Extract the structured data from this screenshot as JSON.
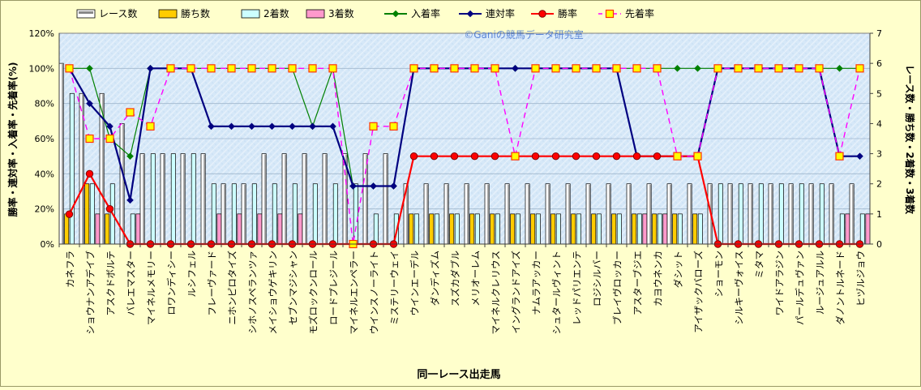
{
  "chart_data": {
    "type": "bar",
    "watermark": "©Ganiの競馬データ研究室",
    "xlabel": "同一レース出走馬",
    "ylabel_left": "勝率・連対率・入着率・先着率(%)",
    "ylabel_right": "レース数・勝ち数・2着数・3着数",
    "ylim_left": [
      0,
      120
    ],
    "ylim_right": [
      0,
      7
    ],
    "yticks_left": [
      "0%",
      "20%",
      "40%",
      "60%",
      "80%",
      "100%",
      "120%"
    ],
    "yticks_right": [
      "0",
      "1",
      "2",
      "3",
      "4",
      "5",
      "6",
      "7"
    ],
    "legend_position": "top",
    "categories": [
      "カネフラ",
      "ショウナンアデイブ",
      "アスクドボルテ",
      "バレエマスター",
      "マイネルメモリー",
      "ロワンディシー",
      "ルシフェル",
      "フレーヴァード",
      "ニホンピロタイズ",
      "シホノスペランツァ",
      "メイショウゲキリン",
      "セブンマジシャン",
      "モズロックンロール",
      "ロードプレジール",
      "マイネルエンペラー",
      "ウインスノーライト",
      "ミステリーウェイ",
      "ウインエーデル",
      "ダンディズム",
      "スズカダブル",
      "メリオーレム",
      "マイネルクレリウス",
      "イングランドアイズ",
      "ナムラアッカー",
      "シュタールヴィント",
      "レッドパリエンテ",
      "ロジシルバー",
      "ブレイヴロッカー",
      "アスターブジエ",
      "カヨウネンカ",
      "ダシット",
      "アイザックバローズ",
      "ショーモン",
      "シルキーヴォイス",
      "ミタマ",
      "ワイドアラジン",
      "パールデュヴァン",
      "ルージュアルル",
      "ダノントルネード",
      "ヒヅルジョウ"
    ],
    "series": [
      {
        "name": "レース数",
        "kind": "bar",
        "axis": "right",
        "color": "#ffffff",
        "values": [
          6,
          5,
          5,
          4,
          3,
          3,
          3,
          3,
          2,
          2,
          3,
          3,
          3,
          3,
          3,
          3,
          3,
          2,
          2,
          2,
          2,
          2,
          2,
          2,
          2,
          2,
          2,
          2,
          2,
          2,
          2,
          2,
          2,
          2,
          2,
          2,
          2,
          2,
          2,
          2
        ]
      },
      {
        "name": "勝ち数",
        "kind": "bar",
        "axis": "right",
        "color": "#ffcc00",
        "values": [
          1,
          2,
          1,
          0,
          0,
          0,
          0,
          0,
          0,
          0,
          0,
          0,
          0,
          0,
          0,
          0,
          0,
          1,
          1,
          1,
          1,
          1,
          1,
          1,
          1,
          1,
          1,
          1,
          1,
          1,
          1,
          1,
          0,
          0,
          0,
          0,
          0,
          0,
          0,
          0
        ]
      },
      {
        "name": "2着数",
        "kind": "bar",
        "axis": "right",
        "color": "#ccffff",
        "values": [
          5,
          2,
          2,
          1,
          3,
          3,
          3,
          2,
          2,
          2,
          2,
          2,
          2,
          2,
          2,
          1,
          1,
          1,
          1,
          1,
          1,
          1,
          1,
          1,
          1,
          1,
          1,
          1,
          1,
          1,
          1,
          1,
          2,
          2,
          2,
          2,
          2,
          2,
          1,
          1
        ]
      },
      {
        "name": "3着数",
        "kind": "bar",
        "axis": "right",
        "color": "#ff99cc",
        "values": [
          0,
          1,
          0,
          1,
          0,
          0,
          0,
          1,
          1,
          1,
          1,
          1,
          0,
          0,
          0,
          0,
          0,
          0,
          0,
          0,
          0,
          0,
          0,
          0,
          0,
          0,
          0,
          0,
          1,
          1,
          0,
          0,
          0,
          0,
          0,
          0,
          0,
          0,
          1,
          1
        ]
      },
      {
        "name": "入着率",
        "kind": "line",
        "axis": "left",
        "color": "#008000",
        "marker": "diamond",
        "values": [
          100,
          100,
          60,
          50,
          100,
          100,
          100,
          100,
          100,
          100,
          100,
          100,
          67,
          100,
          33,
          33,
          33,
          100,
          100,
          100,
          100,
          100,
          100,
          100,
          100,
          100,
          100,
          100,
          100,
          100,
          100,
          100,
          100,
          100,
          100,
          100,
          100,
          100,
          100,
          100
        ]
      },
      {
        "name": "連対率",
        "kind": "line",
        "axis": "left",
        "color": "#000080",
        "marker": "diamond",
        "values": [
          100,
          80,
          67,
          25,
          100,
          100,
          100,
          67,
          67,
          67,
          67,
          67,
          67,
          67,
          33,
          33,
          33,
          100,
          100,
          100,
          100,
          100,
          100,
          100,
          100,
          100,
          100,
          100,
          50,
          50,
          50,
          50,
          100,
          100,
          100,
          100,
          100,
          100,
          50,
          50
        ]
      },
      {
        "name": "勝率",
        "kind": "line",
        "axis": "left",
        "color": "#ff0000",
        "marker": "circle",
        "values": [
          17,
          40,
          20,
          0,
          0,
          0,
          0,
          0,
          0,
          0,
          0,
          0,
          0,
          0,
          0,
          0,
          0,
          50,
          50,
          50,
          50,
          50,
          50,
          50,
          50,
          50,
          50,
          50,
          50,
          50,
          50,
          50,
          0,
          0,
          0,
          0,
          0,
          0,
          0,
          0
        ]
      },
      {
        "name": "先着率",
        "kind": "line",
        "axis": "left",
        "color": "#ff00ff",
        "marker": "square",
        "dashed": true,
        "values": [
          100,
          60,
          60,
          75,
          67,
          100,
          100,
          100,
          100,
          100,
          100,
          100,
          100,
          100,
          0,
          67,
          67,
          100,
          100,
          100,
          100,
          100,
          50,
          100,
          100,
          100,
          100,
          100,
          100,
          100,
          50,
          50,
          100,
          100,
          100,
          100,
          100,
          100,
          50,
          100
        ]
      }
    ]
  }
}
